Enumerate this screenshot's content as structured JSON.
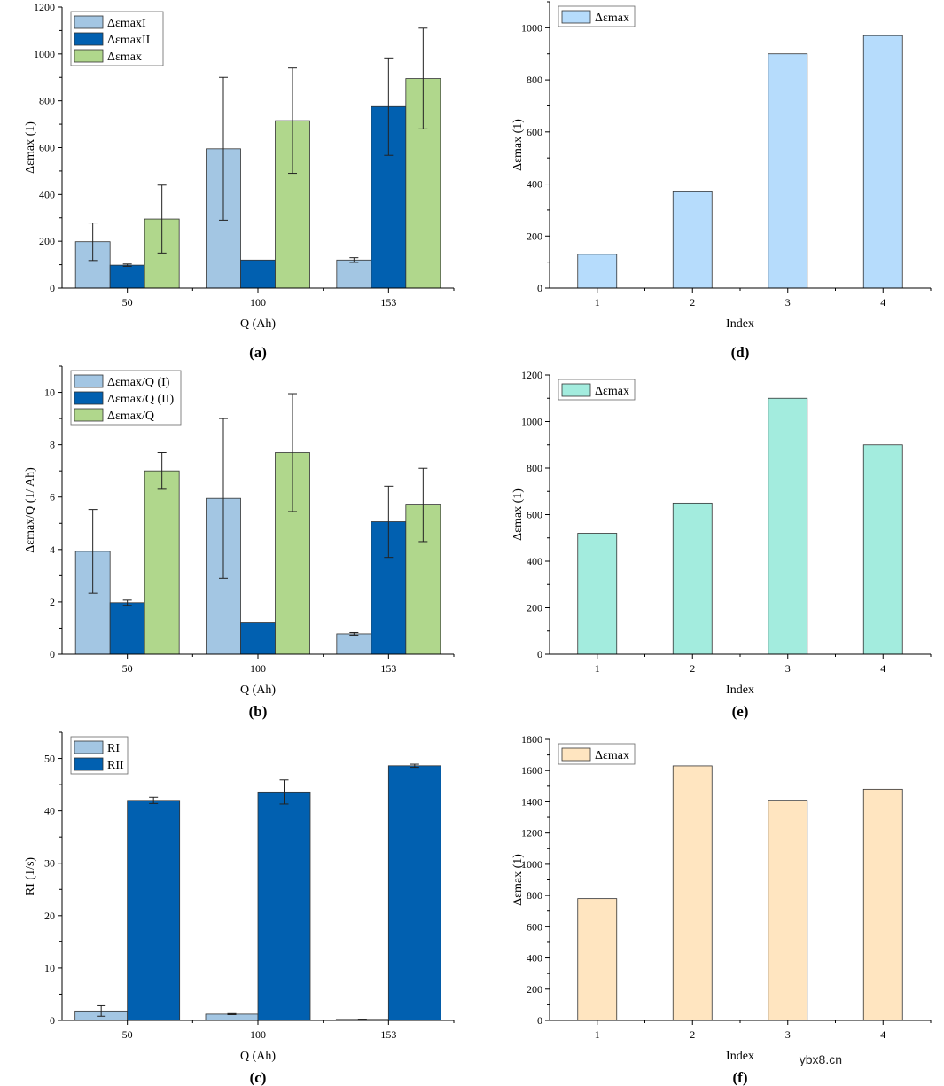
{
  "watermark": "ybx8.cn",
  "colors": {
    "light_blue": "#a3c6e3",
    "dark_blue": "#0160b0",
    "green": "#b0d78c",
    "sky": "#b6dcfc",
    "teal": "#a3ecde",
    "peach": "#ffe5c0"
  },
  "chart_data": [
    {
      "id": "a",
      "type": "bar",
      "panel_label": "(a)",
      "title": "",
      "xlabel": "Q (Ah)",
      "ylabel": "Δεmax (1)",
      "categories": [
        "50",
        "100",
        "153"
      ],
      "ylim": [
        0,
        1200
      ],
      "yticks": [
        0,
        200,
        400,
        600,
        800,
        1000,
        1200
      ],
      "minor_yticks": true,
      "legend_position": "top-left",
      "series": [
        {
          "name": "ΔεmaxI",
          "color_key": "light_blue",
          "values": [
            198,
            595,
            120
          ],
          "errors": [
            80,
            305,
            10
          ]
        },
        {
          "name": "ΔεmaxII",
          "color_key": "dark_blue",
          "values": [
            98,
            120,
            775
          ],
          "errors": [
            5,
            0,
            208
          ]
        },
        {
          "name": "Δεmax",
          "color_key": "green",
          "values": [
            295,
            715,
            895
          ],
          "errors": [
            145,
            225,
            215
          ]
        }
      ]
    },
    {
      "id": "b",
      "type": "bar",
      "panel_label": "(b)",
      "title": "",
      "xlabel": "Q (Ah)",
      "ylabel": "Δεmax/Q (1/ Ah)",
      "categories": [
        "50",
        "100",
        "153"
      ],
      "ylim": [
        0,
        11
      ],
      "yticks": [
        0,
        2,
        4,
        6,
        8,
        10
      ],
      "minor_yticks": true,
      "legend_position": "top-left",
      "series": [
        {
          "name": "Δεmax/Q (I)",
          "color_key": "light_blue",
          "values": [
            3.93,
            5.95,
            0.78
          ],
          "errors": [
            1.6,
            3.05,
            0.05
          ]
        },
        {
          "name": "Δεmax/Q (II)",
          "color_key": "dark_blue",
          "values": [
            1.97,
            1.2,
            5.06
          ],
          "errors": [
            0.1,
            0,
            1.36
          ]
        },
        {
          "name": "Δεmax/Q",
          "color_key": "green",
          "values": [
            7.0,
            7.7,
            5.7
          ],
          "errors": [
            0.7,
            2.25,
            1.4
          ]
        }
      ]
    },
    {
      "id": "c",
      "type": "bar",
      "panel_label": "(c)",
      "title": "",
      "xlabel": "Q (Ah)",
      "ylabel": "RI (1/s)",
      "categories": [
        "50",
        "100",
        "153"
      ],
      "ylim": [
        0,
        55
      ],
      "yticks": [
        0,
        10,
        20,
        30,
        40,
        50
      ],
      "minor_yticks": true,
      "legend_position": "top-left",
      "series": [
        {
          "name": "RI",
          "color_key": "light_blue",
          "values": [
            1.8,
            1.2,
            0.2
          ],
          "errors": [
            1.0,
            0.1,
            0.05
          ]
        },
        {
          "name": "RII",
          "color_key": "dark_blue",
          "values": [
            42.0,
            43.6,
            48.6
          ],
          "errors": [
            0.6,
            2.3,
            0.3
          ]
        }
      ]
    },
    {
      "id": "d",
      "type": "bar",
      "panel_label": "(d)",
      "title": "",
      "xlabel": "Index",
      "ylabel": "Δεmax (1)",
      "categories": [
        "1",
        "2",
        "3",
        "4"
      ],
      "ylim": [
        0,
        1100
      ],
      "yticks": [
        0,
        200,
        400,
        600,
        800,
        1000
      ],
      "minor_yticks": true,
      "legend_position": "top-left",
      "series": [
        {
          "name": "Δεmax",
          "color_key": "sky",
          "values": [
            130,
            370,
            900,
            970
          ]
        }
      ]
    },
    {
      "id": "e",
      "type": "bar",
      "panel_label": "(e)",
      "title": "",
      "xlabel": "Index",
      "ylabel": "Δεmax (1)",
      "categories": [
        "1",
        "2",
        "3",
        "4"
      ],
      "ylim": [
        0,
        1200
      ],
      "yticks": [
        0,
        200,
        400,
        600,
        800,
        1000,
        1200
      ],
      "minor_yticks": true,
      "legend_position": "top-left",
      "series": [
        {
          "name": "Δεmax",
          "color_key": "teal",
          "values": [
            520,
            650,
            1100,
            900
          ]
        }
      ]
    },
    {
      "id": "f",
      "type": "bar",
      "panel_label": "(f)",
      "title": "",
      "xlabel": "Index",
      "ylabel": "Δεmax (1)",
      "categories": [
        "1",
        "2",
        "3",
        "4"
      ],
      "ylim": [
        0,
        1800
      ],
      "yticks": [
        0,
        200,
        400,
        600,
        800,
        1000,
        1200,
        1400,
        1600,
        1800
      ],
      "minor_yticks": true,
      "legend_position": "top-left",
      "series": [
        {
          "name": "Δεmax",
          "color_key": "peach",
          "values": [
            780,
            1630,
            1410,
            1480
          ]
        }
      ]
    }
  ]
}
